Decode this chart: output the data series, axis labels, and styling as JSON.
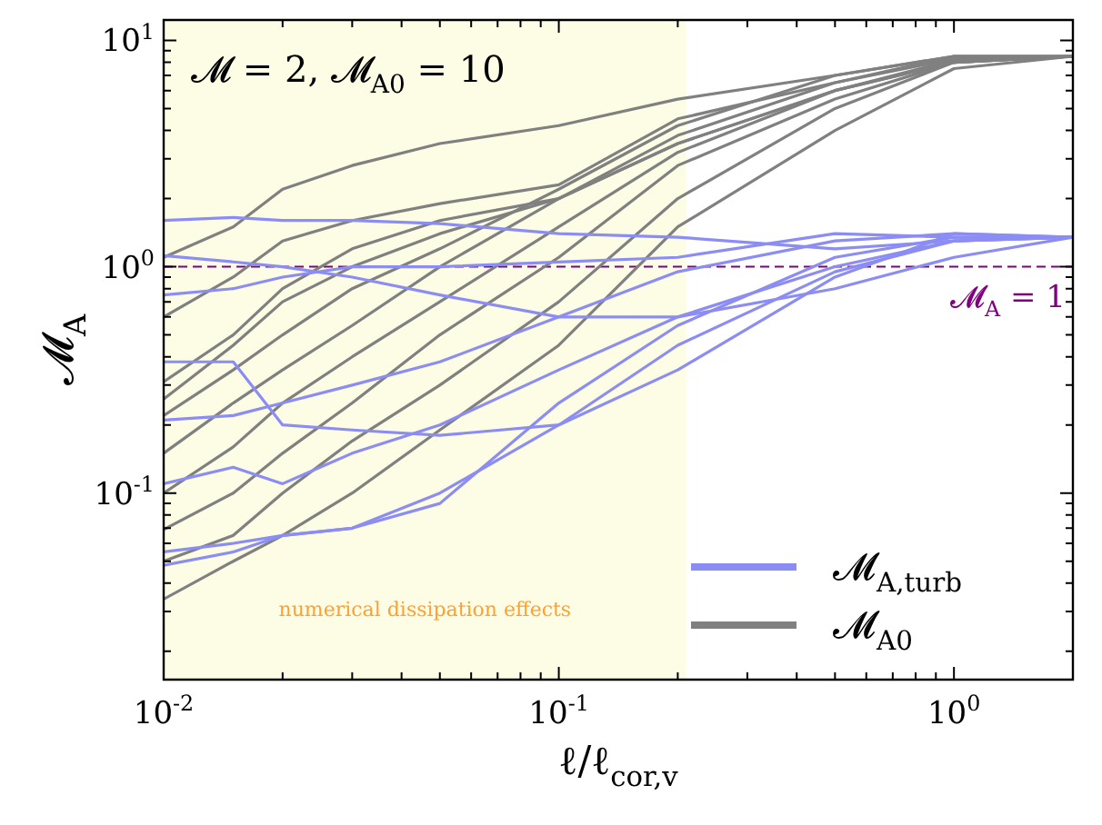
{
  "chart_data": {
    "type": "line",
    "title": "𝓜 = 2, 𝓜$_{A0}$ = 10",
    "xlabel": "ℓ/ℓ$_{cor,v}$",
    "ylabel": "𝓜$_{A}$",
    "log": "xy",
    "legend": "bottom right",
    "marker": "none",
    "line_style": "solid",
    "x": [
      0.01,
      0.015,
      0.02,
      0.03,
      0.05,
      0.1,
      0.2,
      0.5,
      1,
      2
    ],
    "xlim": [
      0.01,
      2
    ],
    "ylim": [
      0.015,
      12.3
    ],
    "xticks": [
      {
        "value": 0.01,
        "label": "10$^{-2}$"
      },
      {
        "value": 0.02,
        "label": null
      },
      {
        "value": 0.03,
        "label": null
      },
      {
        "value": 0.04,
        "label": null
      },
      {
        "value": 0.05,
        "label": null
      },
      {
        "value": 0.06,
        "label": null
      },
      {
        "value": 0.07,
        "label": null
      },
      {
        "value": 0.08,
        "label": null
      },
      {
        "value": 0.09,
        "label": null
      },
      {
        "value": 0.1,
        "label": "10$^{-1}$"
      },
      {
        "value": 0.2,
        "label": null
      },
      {
        "value": 0.3,
        "label": null
      },
      {
        "value": 0.4,
        "label": null
      },
      {
        "value": 0.5,
        "label": null
      },
      {
        "value": 0.6,
        "label": null
      },
      {
        "value": 0.7,
        "label": null
      },
      {
        "value": 0.8,
        "label": null
      },
      {
        "value": 0.9,
        "label": null
      },
      {
        "value": 1,
        "label": "10$^{0}$"
      },
      {
        "value": 2,
        "label": null
      }
    ],
    "yticks": [
      {
        "value": 0.02,
        "label": null
      },
      {
        "value": 0.03,
        "label": null
      },
      {
        "value": 0.04,
        "label": null
      },
      {
        "value": 0.05,
        "label": null
      },
      {
        "value": 0.06,
        "label": null
      },
      {
        "value": 0.07,
        "label": null
      },
      {
        "value": 0.08,
        "label": null
      },
      {
        "value": 0.09,
        "label": null
      },
      {
        "value": 0.1,
        "label": "10$^{-1}$"
      },
      {
        "value": 0.2,
        "label": null
      },
      {
        "value": 0.3,
        "label": null
      },
      {
        "value": 0.4,
        "label": null
      },
      {
        "value": 0.5,
        "label": null
      },
      {
        "value": 0.6,
        "label": null
      },
      {
        "value": 0.7,
        "label": null
      },
      {
        "value": 0.8,
        "label": null
      },
      {
        "value": 0.9,
        "label": null
      },
      {
        "value": 1,
        "label": "10$^{0}$"
      },
      {
        "value": 2,
        "label": null
      },
      {
        "value": 3,
        "label": null
      },
      {
        "value": 4,
        "label": null
      },
      {
        "value": 5,
        "label": null
      },
      {
        "value": 6,
        "label": null
      },
      {
        "value": 7,
        "label": null
      },
      {
        "value": 8,
        "label": null
      },
      {
        "value": 9,
        "label": null
      },
      {
        "value": 10,
        "label": "10$^{1}$"
      }
    ],
    "bands": [
      {
        "axis": "x",
        "from": 0.01,
        "to": 0.21,
        "label": "numerical dissipation effects",
        "color": "#fdfde6"
      }
    ],
    "ref_lines": [
      {
        "axis": "y",
        "value": 1,
        "label": "𝓜$_{A}$ = 1",
        "color": "#800080",
        "line_style": "dashed"
      }
    ],
    "series": [
      {
        "name": "𝓜$_{A,turb}$",
        "color": "#8c8cf5",
        "values": [
          1.6,
          1.65,
          1.6,
          1.6,
          1.55,
          1.4,
          1.35,
          1.2,
          1.3,
          1.35
        ]
      },
      {
        "color": "#8c8cf5",
        "values": [
          1.12,
          1.05,
          1.0,
          0.9,
          0.75,
          0.6,
          0.6,
          0.8,
          1.1,
          1.35
        ]
      },
      {
        "color": "#8c8cf5",
        "values": [
          0.75,
          0.8,
          0.9,
          1.0,
          1.0,
          1.05,
          1.1,
          1.4,
          1.35,
          1.35
        ]
      },
      {
        "color": "#8c8cf5",
        "values": [
          0.38,
          0.38,
          0.2,
          0.19,
          0.18,
          0.2,
          0.35,
          0.9,
          1.4,
          1.35
        ]
      },
      {
        "color": "#8c8cf5",
        "values": [
          0.21,
          0.22,
          0.25,
          0.3,
          0.38,
          0.6,
          0.95,
          1.3,
          1.4,
          1.35
        ]
      },
      {
        "color": "#8c8cf5",
        "values": [
          0.11,
          0.13,
          0.11,
          0.15,
          0.2,
          0.35,
          0.6,
          1.0,
          1.3,
          1.35
        ]
      },
      {
        "color": "#8c8cf5",
        "values": [
          0.055,
          0.06,
          0.065,
          0.07,
          0.1,
          0.2,
          0.45,
          0.95,
          1.3,
          1.35
        ]
      },
      {
        "color": "#8c8cf5",
        "values": [
          0.048,
          0.055,
          0.065,
          0.07,
          0.09,
          0.25,
          0.55,
          1.1,
          1.35,
          1.35
        ]
      },
      {
        "name": "𝓜$_{A0}$",
        "color": "#808080",
        "values": [
          1.1,
          1.5,
          2.2,
          2.8,
          3.5,
          4.2,
          5.5,
          7,
          8.5,
          8.5
        ]
      },
      {
        "color": "#808080",
        "values": [
          0.6,
          0.9,
          1.3,
          1.6,
          1.9,
          2.3,
          4.5,
          6.5,
          8.5,
          8.5
        ]
      },
      {
        "color": "#808080",
        "values": [
          0.31,
          0.5,
          0.8,
          1.2,
          1.6,
          2.0,
          3.5,
          6,
          8,
          8.5
        ]
      },
      {
        "color": "#808080",
        "values": [
          0.26,
          0.45,
          0.7,
          1.0,
          1.4,
          2.0,
          3.8,
          6.5,
          8.3,
          8.5
        ]
      },
      {
        "color": "#808080",
        "values": [
          0.22,
          0.35,
          0.5,
          0.8,
          1.2,
          2.2,
          4.2,
          7,
          8.5,
          8.5
        ]
      },
      {
        "color": "#808080",
        "values": [
          0.15,
          0.25,
          0.35,
          0.55,
          1.0,
          2.0,
          3.5,
          6,
          8.2,
          8.5
        ]
      },
      {
        "color": "#808080",
        "values": [
          0.1,
          0.16,
          0.25,
          0.4,
          0.7,
          1.5,
          3.2,
          6,
          8,
          8.5
        ]
      },
      {
        "color": "#808080",
        "values": [
          0.069,
          0.1,
          0.15,
          0.25,
          0.5,
          1.1,
          2.8,
          5.5,
          8,
          8.5
        ]
      },
      {
        "color": "#808080",
        "values": [
          0.05,
          0.065,
          0.1,
          0.17,
          0.3,
          0.7,
          2.0,
          5,
          8,
          8.5
        ]
      },
      {
        "color": "#808080",
        "values": [
          0.034,
          0.05,
          0.065,
          0.1,
          0.19,
          0.45,
          1.5,
          4,
          7.5,
          8.5
        ]
      }
    ]
  }
}
